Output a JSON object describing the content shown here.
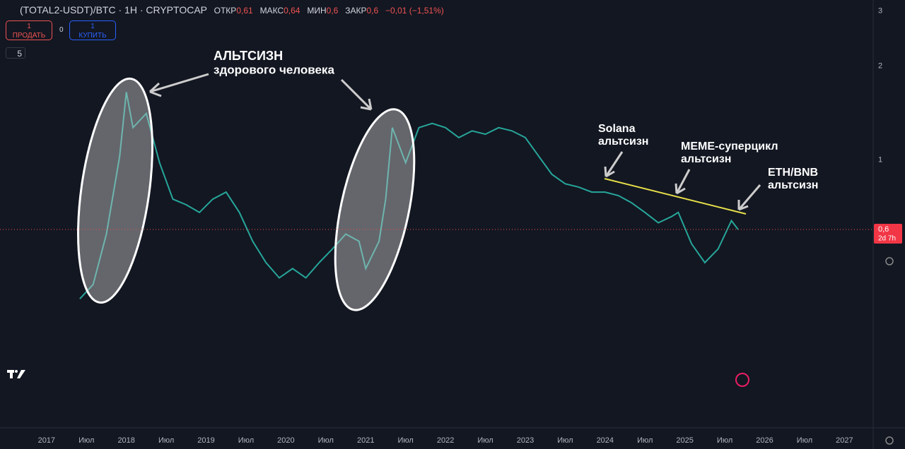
{
  "header": {
    "symbol": "(TOTAL2-USDT)/BTC · 1H · CRYPTOCAP",
    "ohlc": [
      {
        "label": "ОТКР",
        "value": "0,61"
      },
      {
        "label": "МАКС",
        "value": "0,64"
      },
      {
        "label": "МИН",
        "value": "0,6"
      },
      {
        "label": "ЗАКР",
        "value": "0,6"
      }
    ],
    "change": "−0,01 (−1,51%)",
    "sell": {
      "qty": "1",
      "label": "ПРОДАТЬ"
    },
    "spread": "0",
    "buy": {
      "qty": "1",
      "label": "КУПИТЬ"
    },
    "indicators": "5"
  },
  "chart_data": {
    "type": "line",
    "x": [
      "2017-06",
      "2017-08",
      "2017-10",
      "2017-12",
      "2018-01",
      "2018-02",
      "2018-04",
      "2018-06",
      "2018-08",
      "2018-10",
      "2018-12",
      "2019-02",
      "2019-04",
      "2019-06",
      "2019-08",
      "2019-10",
      "2019-12",
      "2020-02",
      "2020-04",
      "2020-06",
      "2020-08",
      "2020-10",
      "2020-12",
      "2021-01",
      "2021-03",
      "2021-04",
      "2021-05",
      "2021-07",
      "2021-09",
      "2021-11",
      "2022-01",
      "2022-03",
      "2022-05",
      "2022-07",
      "2022-09",
      "2022-11",
      "2023-01",
      "2023-03",
      "2023-05",
      "2023-07",
      "2023-09",
      "2023-11",
      "2024-01",
      "2024-03",
      "2024-05",
      "2024-07",
      "2024-09",
      "2024-11",
      "2024-12",
      "2025-02",
      "2025-04",
      "2025-06",
      "2025-08",
      "2025-09"
    ],
    "series": [
      {
        "color": "#26a69a",
        "values": [
          0.36,
          0.4,
          0.58,
          1.03,
          1.65,
          1.27,
          1.41,
          0.98,
          0.75,
          0.72,
          0.68,
          0.75,
          0.79,
          0.68,
          0.55,
          0.47,
          0.42,
          0.45,
          0.42,
          0.47,
          0.52,
          0.58,
          0.55,
          0.45,
          0.55,
          0.75,
          1.27,
          0.98,
          1.27,
          1.31,
          1.27,
          1.18,
          1.24,
          1.21,
          1.27,
          1.24,
          1.18,
          1.03,
          0.9,
          0.84,
          0.82,
          0.79,
          0.79,
          0.77,
          0.73,
          0.68,
          0.63,
          0.66,
          0.68,
          0.54,
          0.47,
          0.52,
          0.64,
          0.6
        ]
      }
    ],
    "log_scale": true,
    "ylim": [
      0.14,
      3.25
    ],
    "yticks": [
      1,
      2,
      3
    ],
    "xlim": [
      "2016-06",
      "2027-05"
    ],
    "xticks": [
      {
        "value": "2017-01",
        "label": "2017"
      },
      {
        "value": "2017-07",
        "label": "Июл"
      },
      {
        "value": "2018-01",
        "label": "2018"
      },
      {
        "value": "2018-07",
        "label": "Июл"
      },
      {
        "value": "2019-01",
        "label": "2019"
      },
      {
        "value": "2019-07",
        "label": "Июл"
      },
      {
        "value": "2020-01",
        "label": "2020"
      },
      {
        "value": "2020-07",
        "label": "Июл"
      },
      {
        "value": "2021-01",
        "label": "2021"
      },
      {
        "value": "2021-07",
        "label": "Июл"
      },
      {
        "value": "2022-01",
        "label": "2022"
      },
      {
        "value": "2022-07",
        "label": "Июл"
      },
      {
        "value": "2023-01",
        "label": "2023"
      },
      {
        "value": "2023-07",
        "label": "Июл"
      },
      {
        "value": "2024-01",
        "label": "2024"
      },
      {
        "value": "2024-07",
        "label": "Июл"
      },
      {
        "value": "2025-01",
        "label": "2025"
      },
      {
        "value": "2025-07",
        "label": "Июл"
      },
      {
        "value": "2026-01",
        "label": "2026"
      },
      {
        "value": "2026-07",
        "label": "Июл"
      },
      {
        "value": "2027-01",
        "label": "2027"
      }
    ],
    "annotations": [
      "АЛЬТСИЗН",
      "здорового человека",
      "Solana",
      "альтсизн",
      "MEME-суперцикл",
      "альтсизн",
      "ETH/BNB",
      "альтсизн"
    ],
    "price_tag": {
      "value": 0.6,
      "label": "0,6"
    },
    "countdown": "2d 7h"
  }
}
